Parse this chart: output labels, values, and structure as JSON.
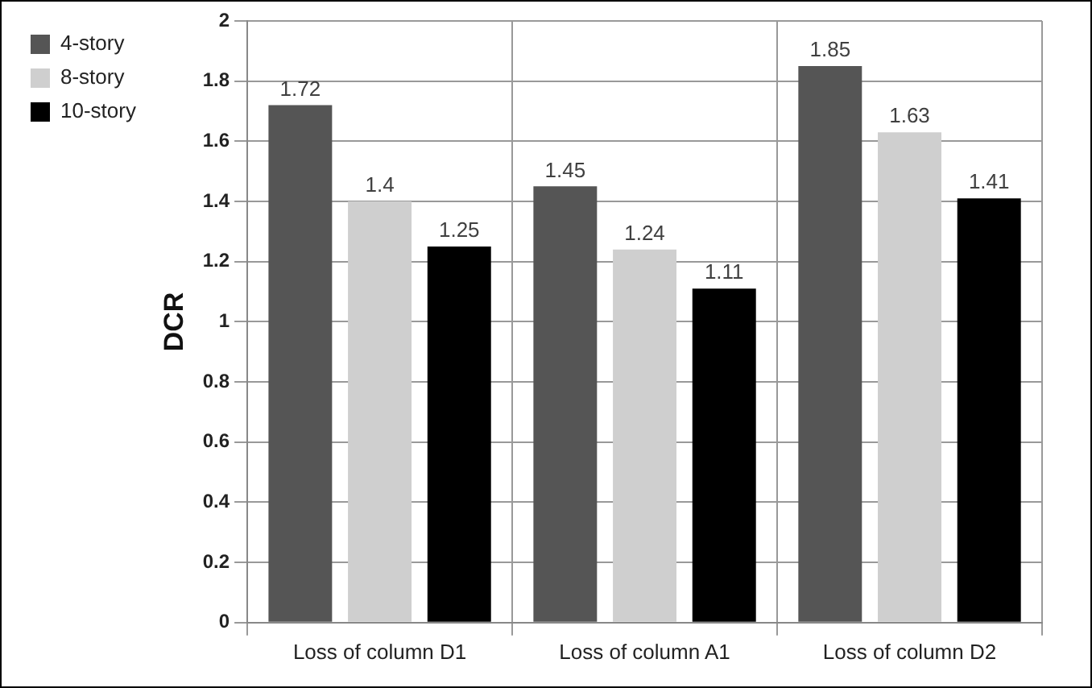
{
  "chart_data": {
    "type": "bar",
    "ylabel": "DCR",
    "categories": [
      "Loss of column D1",
      "Loss of column A1",
      "Loss of column D2"
    ],
    "series": [
      {
        "name": "4-story",
        "color": "#555555",
        "values": [
          1.72,
          1.45,
          1.85
        ]
      },
      {
        "name": "8-story",
        "color": "#cfcfcf",
        "values": [
          1.4,
          1.24,
          1.63
        ]
      },
      {
        "name": "10-story",
        "color": "#000000",
        "values": [
          1.25,
          1.11,
          1.41
        ]
      }
    ],
    "ylim": [
      0,
      2
    ],
    "yticks": [
      0,
      0.2,
      0.4,
      0.6,
      0.8,
      1,
      1.2,
      1.4,
      1.6,
      1.8,
      2
    ],
    "grid": true,
    "legend": "top left",
    "data_labels": true
  }
}
